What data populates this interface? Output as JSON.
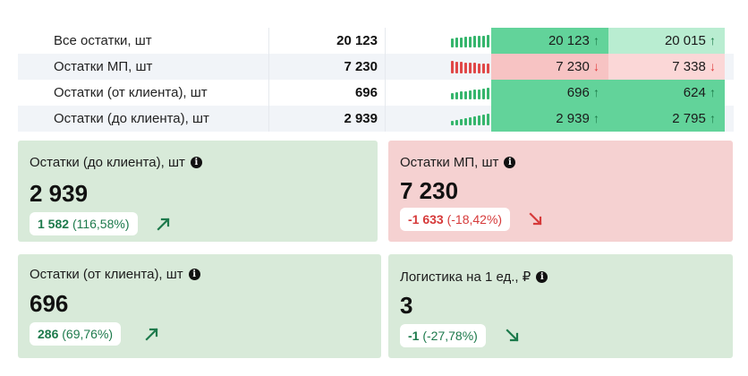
{
  "table": {
    "rows": [
      {
        "label": "Все остатки, шт",
        "value": "20 123",
        "cur": "20 123",
        "cur_dir": "↑",
        "prev": "20 015",
        "prev_dir": "↑",
        "trend": "up"
      },
      {
        "label": "Остатки МП, шт",
        "value": "7 230",
        "cur": "7 230",
        "cur_dir": "↓",
        "prev": "7 338",
        "prev_dir": "↓",
        "trend": "down"
      },
      {
        "label": "Остатки (от клиента), шт",
        "value": "696",
        "cur": "696",
        "cur_dir": "↑",
        "prev": "624",
        "prev_dir": "↑",
        "trend": "up"
      },
      {
        "label": "Остатки (до клиента), шт",
        "value": "2 939",
        "cur": "2 939",
        "cur_dir": "↑",
        "prev": "2 795",
        "prev_dir": "↑",
        "trend": "up"
      }
    ]
  },
  "cards": {
    "c1": {
      "title": "Остатки (до клиента), шт",
      "value": "2 939",
      "delta": "1 582",
      "pct": "(116,58%)",
      "direction": "up",
      "info_icon": "info-icon"
    },
    "c2": {
      "title": "Остатки МП, шт",
      "value": "7 230",
      "delta": "-1 633",
      "pct": "(-18,42%)",
      "direction": "down",
      "info_icon": "info-icon"
    },
    "c3": {
      "title": "Остатки (от клиента), шт",
      "value": "696",
      "delta": "286",
      "pct": "(69,76%)",
      "direction": "up",
      "info_icon": "info-icon"
    },
    "c4": {
      "title": "Логистика на 1 ед., ₽",
      "value": "3",
      "delta": "-1",
      "pct": "(-27,78%)",
      "direction": "down",
      "info_icon": "info-icon"
    }
  },
  "colors": {
    "up_strong": "#62d39a",
    "up_light": "#b9edd1",
    "down_strong": "#f7c3c3",
    "down_light": "#fbd7d7",
    "card_green": "#d8ead9",
    "card_red": "#f5d1d1",
    "positive_text": "#1d7a4c",
    "negative_text": "#d63a3a"
  }
}
